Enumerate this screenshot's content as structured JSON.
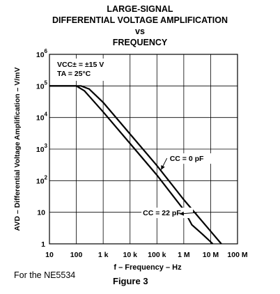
{
  "title_lines": [
    "LARGE-SIGNAL",
    "DIFFERENTIAL VOLTAGE AMPLIFICATION",
    "vs",
    "FREQUENCY"
  ],
  "footer_note": "For the NE5534",
  "figure_label": "Figure 3",
  "chart_data": {
    "type": "line",
    "title": "LARGE-SIGNAL DIFFERENTIAL VOLTAGE AMPLIFICATION vs FREQUENCY",
    "xlabel": "f – Frequency – Hz",
    "ylabel": "AVD – Differential Voltage Amplification – V/mV",
    "xscale": "log",
    "yscale": "log",
    "xlim": [
      10,
      100000000
    ],
    "ylim": [
      1,
      1000000
    ],
    "grid": true,
    "x_ticks": [
      {
        "value": 10,
        "label": "10"
      },
      {
        "value": 100,
        "label": "100"
      },
      {
        "value": 1000,
        "label": "1 k"
      },
      {
        "value": 10000,
        "label": "10 k"
      },
      {
        "value": 100000,
        "label": "100 k"
      },
      {
        "value": 1000000,
        "label": "1 M"
      },
      {
        "value": 10000000,
        "label": "10 M"
      },
      {
        "value": 100000000,
        "label": "100 M"
      }
    ],
    "y_ticks": [
      {
        "value": 1,
        "base": "1",
        "exp": ""
      },
      {
        "value": 10,
        "base": "10",
        "exp": ""
      },
      {
        "value": 100,
        "base": "10",
        "exp": "2"
      },
      {
        "value": 1000,
        "base": "10",
        "exp": "3"
      },
      {
        "value": 10000,
        "base": "10",
        "exp": "4"
      },
      {
        "value": 100000,
        "base": "10",
        "exp": "5"
      },
      {
        "value": 1000000,
        "base": "10",
        "exp": "6"
      }
    ],
    "conditions": [
      "VCC± = ±15 V",
      "TA = 25°C"
    ],
    "series": [
      {
        "name": "CC = 0 pF",
        "x": [
          10,
          150,
          300,
          1000,
          10000,
          100000,
          1000000,
          10000000,
          25000000
        ],
        "y": [
          100000,
          100000,
          80000,
          30000,
          3000,
          300,
          25,
          2.5,
          1
        ]
      },
      {
        "name": "CC = 22 pF",
        "x": [
          10,
          100,
          200,
          1000,
          10000,
          100000,
          1000000,
          2000000,
          5000000,
          12000000
        ],
        "y": [
          100000,
          100000,
          70000,
          15000,
          1500,
          150,
          12,
          4,
          2,
          1
        ]
      }
    ],
    "annotations": [
      {
        "text": "CC = 0 pF",
        "points_to": "CC = 0 pF"
      },
      {
        "text": "CC = 22 pF",
        "points_to": "CC = 22 pF"
      }
    ]
  }
}
